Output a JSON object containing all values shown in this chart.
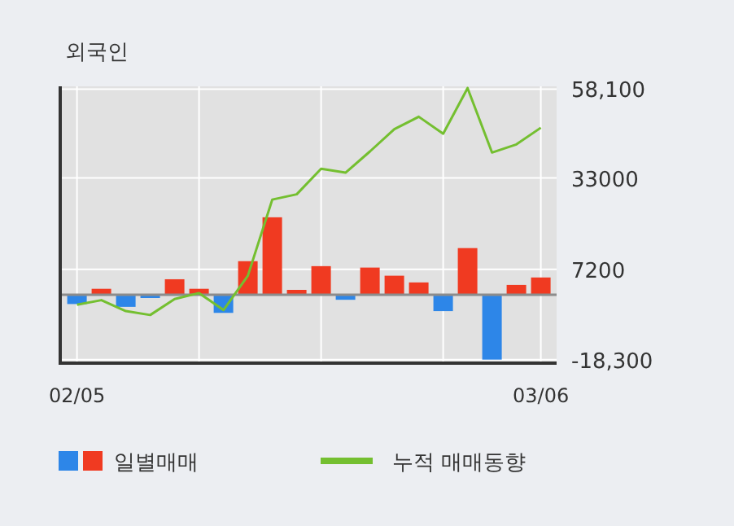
{
  "chart_data": {
    "type": "bar",
    "title": "외국인",
    "categories": [
      "02/05",
      null,
      null,
      null,
      null,
      null,
      null,
      null,
      null,
      null,
      null,
      null,
      null,
      null,
      null,
      null,
      null,
      null,
      null,
      "03/06"
    ],
    "series": [
      {
        "name": "일별매매",
        "values": [
          -2600,
          1700,
          -3400,
          -900,
          4400,
          1700,
          -5100,
          9500,
          21900,
          1400,
          8100,
          -1400,
          7700,
          5400,
          3500,
          -4600,
          13200,
          -18300,
          2800,
          4900
        ],
        "colors": [
          "#2d86e8",
          "#f03a21",
          "#2d86e8",
          "#2d86e8",
          "#f03a21",
          "#f03a21",
          "#2d86e8",
          "#f03a21",
          "#f03a21",
          "#f03a21",
          "#f03a21",
          "#2d86e8",
          "#f03a21",
          "#f03a21",
          "#f03a21",
          "#2d86e8",
          "#f03a21",
          "#2d86e8",
          "#f03a21",
          "#f03a21"
        ]
      },
      {
        "name": "누적 매매동향",
        "type": "line",
        "color": "#74bf30",
        "values": [
          -2800,
          -1500,
          -4600,
          -5700,
          -1200,
          500,
          -4300,
          5400,
          26900,
          28400,
          35600,
          34500,
          40500,
          46800,
          50300,
          45500,
          58400,
          40200,
          42500,
          47200
        ]
      }
    ],
    "ylim": [
      -19300,
      58900
    ],
    "yticks": [
      {
        "value": 58100,
        "label": "58,100"
      },
      33000,
      7200,
      {
        "value": -18300,
        "label": "-18,300"
      }
    ],
    "grid": true,
    "legend": "bottom",
    "marker": "none"
  }
}
